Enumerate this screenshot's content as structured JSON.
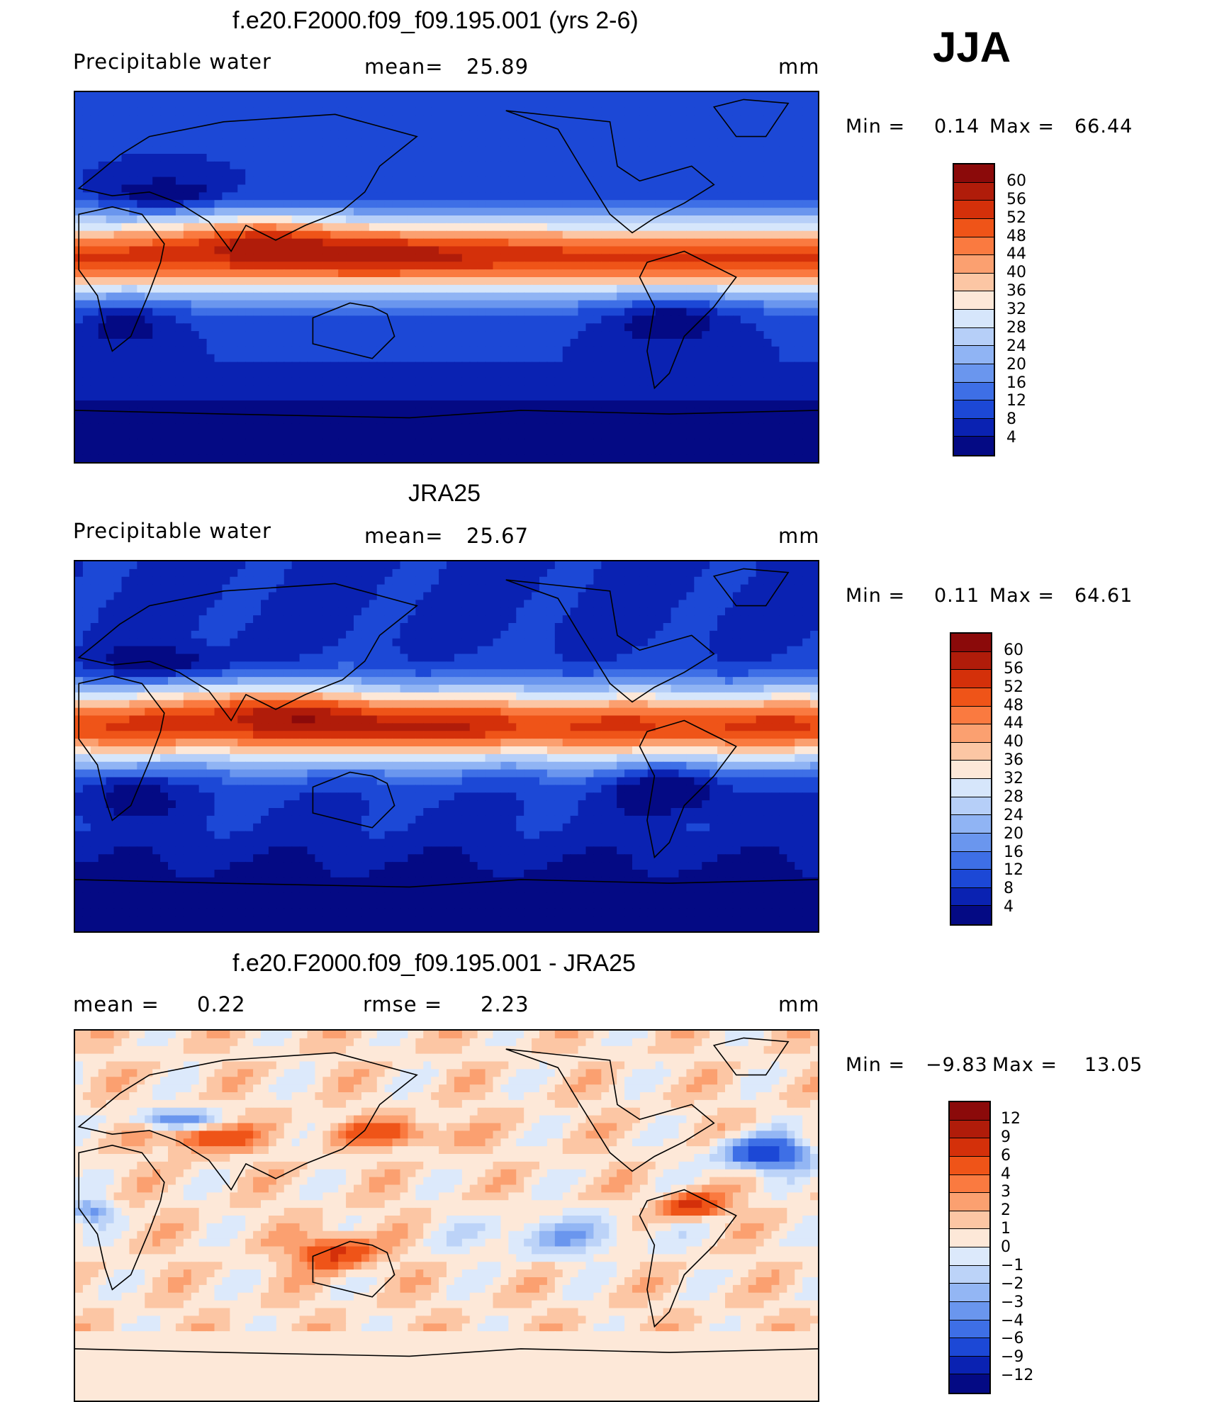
{
  "season": "JJA",
  "panels": [
    {
      "title": "f.e20.F2000.f09_f09.195.001 (yrs 2-6)",
      "left_label": "Precipitable  water",
      "mid_label": "mean=",
      "mid_value": "25.89",
      "units": "mm",
      "min_label": "Min  =",
      "min_value": "0.14",
      "max_label": "Max  =",
      "max_value": "66.44",
      "colorbar": {
        "levels": [
          "60",
          "56",
          "52",
          "48",
          "44",
          "40",
          "36",
          "32",
          "28",
          "24",
          "20",
          "16",
          "12",
          "8",
          "4"
        ],
        "colors": [
          "#8b0a0a",
          "#b01c0a",
          "#d4300a",
          "#ef5418",
          "#fa7a40",
          "#fba070",
          "#fcc6a4",
          "#fde8d8",
          "#d6e6fb",
          "#b6cff8",
          "#90b4f4",
          "#6a96ee",
          "#3e6fe6",
          "#1c48d6",
          "#0a22b2",
          "#040a84"
        ]
      }
    },
    {
      "title": "JRA25",
      "left_label": "Precipitable  water",
      "mid_label": "mean=",
      "mid_value": "25.67",
      "units": "mm",
      "min_label": "Min  =",
      "min_value": "0.11",
      "max_label": "Max  =",
      "max_value": "64.61",
      "colorbar": {
        "levels": [
          "60",
          "56",
          "52",
          "48",
          "44",
          "40",
          "36",
          "32",
          "28",
          "24",
          "20",
          "16",
          "12",
          "8",
          "4"
        ],
        "colors": [
          "#8b0a0a",
          "#b01c0a",
          "#d4300a",
          "#ef5418",
          "#fa7a40",
          "#fba070",
          "#fcc6a4",
          "#fde8d8",
          "#d6e6fb",
          "#b6cff8",
          "#90b4f4",
          "#6a96ee",
          "#3e6fe6",
          "#1c48d6",
          "#0a22b2",
          "#040a84"
        ]
      }
    },
    {
      "title": "f.e20.F2000.f09_f09.195.001 - JRA25",
      "left_label": "mean  =",
      "left_value": "0.22",
      "mid_label": "rmse  =",
      "mid_value": "2.23",
      "units": "mm",
      "min_label": "Min  =",
      "min_value": "−9.83",
      "max_label": "Max  =",
      "max_value": "13.05",
      "colorbar": {
        "levels": [
          "12",
          "9",
          "6",
          "4",
          "3",
          "2",
          "1",
          "0",
          "−1",
          "−2",
          "−3",
          "−4",
          "−6",
          "−9",
          "−12"
        ],
        "colors": [
          "#8b0a0a",
          "#b01c0a",
          "#d4300a",
          "#ef5418",
          "#fa7a40",
          "#fba070",
          "#fcc6a4",
          "#fde8d8",
          "#dce9fb",
          "#bcd3f8",
          "#93b6f4",
          "#6a96ee",
          "#3e6fe6",
          "#1c48d6",
          "#0a22b2",
          "#040a84"
        ]
      }
    }
  ]
}
